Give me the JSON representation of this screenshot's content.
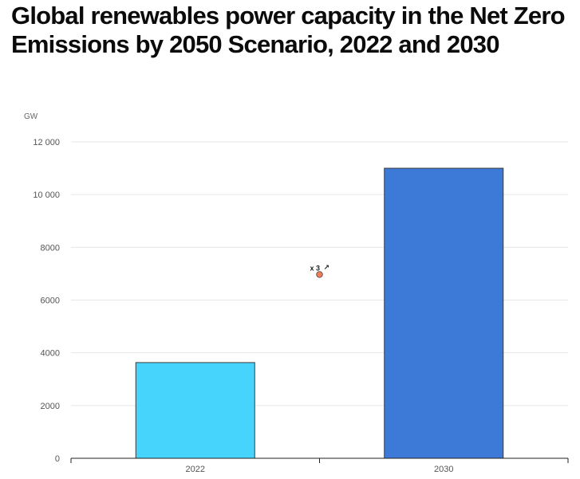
{
  "title": "Global renewables power capacity in the Net Zero Emissions by 2050 Scenario, 2022 and 2030",
  "chart_data": {
    "type": "bar",
    "title": "Global renewables power capacity in the Net Zero Emissions by 2050 Scenario, 2022 and 2030",
    "ylabel": "GW",
    "xlabel": "",
    "categories": [
      "2022",
      "2030"
    ],
    "values": [
      3630,
      11000
    ],
    "colors": [
      "#47d4fc",
      "#3d79d6"
    ],
    "ylim": [
      0,
      12000
    ],
    "yticks": [
      0,
      2000,
      4000,
      6000,
      8000,
      10000,
      12000
    ],
    "ytick_labels": [
      "0",
      "2000",
      "4000",
      "6000",
      "8000",
      "10 000",
      "12 000"
    ],
    "grid": true,
    "annotation": {
      "text": "x 3",
      "arrow": "↗",
      "y": 7000,
      "marker_color": "#f07d57"
    }
  }
}
